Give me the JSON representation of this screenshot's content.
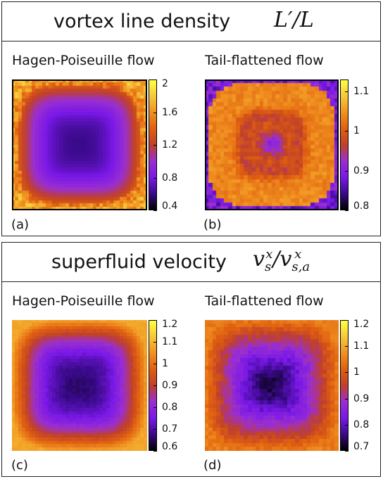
{
  "top": {
    "title": "vortex line density",
    "math": "L′/L",
    "subtitle_left": "Hagen-Poiseuille flow",
    "subtitle_right": "Tail-flattened flow",
    "label_a": "(a)",
    "label_b": "(b)"
  },
  "bottom": {
    "title": "superfluid velocity",
    "math": "v",
    "subtitle_left": "Hagen-Poiseuille flow",
    "subtitle_right": "Tail-flattened flow",
    "label_c": "(c)",
    "label_d": "(d)"
  },
  "colors": {
    "colormap": [
      "#000000",
      "#3a0a8a",
      "#7a18e8",
      "#9a2fd0",
      "#c0402a",
      "#e06010",
      "#f09020",
      "#f6c83a",
      "#ffff40"
    ]
  },
  "chart_data": [
    {
      "type": "heatmap",
      "id": "a",
      "description_label": "(a)",
      "pattern": "hagen-poiseuille",
      "center_value": 0.6,
      "edge_value": 1.55,
      "colorbar": {
        "min": 0.4,
        "max": 2.0,
        "ticks": [
          "2",
          "1.6",
          "1.2",
          "0.8",
          "0.4"
        ],
        "tick_values": [
          2.0,
          1.6,
          1.2,
          0.8,
          0.4
        ]
      }
    },
    {
      "type": "heatmap",
      "id": "b",
      "description_label": "(b)",
      "pattern": "tail-flattened",
      "center_value": 0.91,
      "ring_value": 1.01,
      "outer_value": 1.04,
      "corner_value": 0.85,
      "colorbar": {
        "min": 0.8,
        "max": 1.13,
        "ticks": [
          "1.1",
          "1",
          "0.9",
          "0.8"
        ],
        "tick_values": [
          1.1,
          1.0,
          0.9,
          0.8
        ]
      }
    },
    {
      "type": "heatmap",
      "id": "c",
      "description_label": "(c)",
      "pattern": "hagen-poiseuille",
      "center_value": 0.66,
      "edge_value": 1.08,
      "colorbar": {
        "min": 0.6,
        "max": 1.2,
        "ticks": [
          "1.2",
          "1.1",
          "1",
          "0.9",
          "0.8",
          "0.7",
          "0.6"
        ],
        "tick_values": [
          1.2,
          1.1,
          1.0,
          0.9,
          0.8,
          0.7,
          0.6
        ]
      }
    },
    {
      "type": "heatmap",
      "id": "d",
      "description_label": "(d)",
      "pattern": "tail-flattened-velocity",
      "center_value": 0.72,
      "edge_value": 1.05,
      "colorbar": {
        "min": 0.7,
        "max": 1.2,
        "ticks": [
          "1.2",
          "1.1",
          "1",
          "0.9",
          "0.8",
          "0.7"
        ],
        "tick_values": [
          1.2,
          1.1,
          1.0,
          0.9,
          0.8,
          0.7
        ]
      }
    }
  ]
}
